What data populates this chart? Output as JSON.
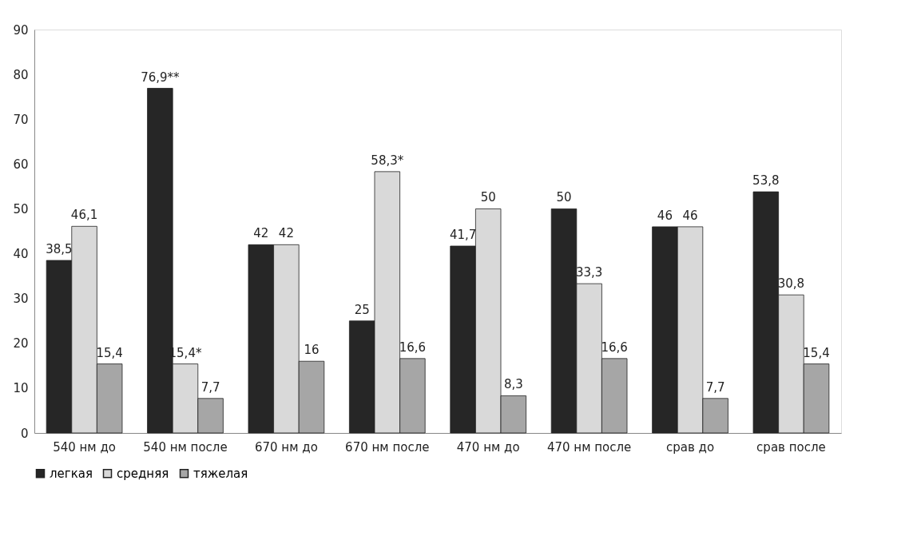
{
  "chart_data": {
    "type": "bar",
    "categories": [
      "540 нм до",
      "540 нм после",
      "670 нм до",
      "670 нм после",
      "470 нм до",
      "470 нм после",
      "срав до",
      "срав после"
    ],
    "series": [
      {
        "name": "легкая",
        "color": "#262626",
        "values": [
          38.5,
          76.9,
          42,
          25,
          41.7,
          50,
          46,
          53.8
        ],
        "value_labels": [
          "38,5",
          "76,9**",
          "42",
          "25",
          "41,7",
          "50",
          "46",
          "53,8"
        ]
      },
      {
        "name": "средняя",
        "color": "#d9d9d9",
        "values": [
          46.1,
          15.4,
          42,
          58.3,
          50,
          33.3,
          46,
          30.8
        ],
        "value_labels": [
          "46,1",
          "15,4*",
          "42",
          "58,3*",
          "50",
          "33,3",
          "46",
          "30,8"
        ]
      },
      {
        "name": "тяжелая",
        "color": "#a6a6a6",
        "values": [
          15.4,
          7.7,
          16,
          16.6,
          8.3,
          16.6,
          7.7,
          15.4
        ],
        "value_labels": [
          "15,4",
          "7,7",
          "16",
          "16,6",
          "8,3",
          "16,6",
          "7,7",
          "15,4"
        ]
      }
    ],
    "ylim": [
      0,
      90
    ],
    "yticks": [
      0,
      10,
      20,
      30,
      40,
      50,
      60,
      70,
      80,
      90
    ],
    "grid": false,
    "legend": "bottom"
  }
}
